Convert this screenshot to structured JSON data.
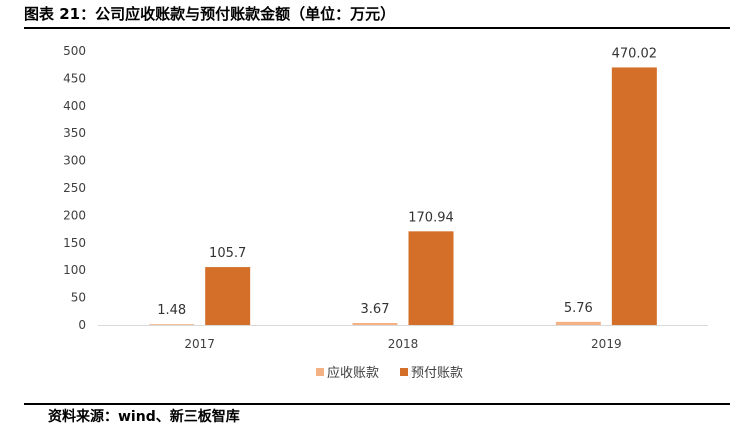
{
  "header": {
    "title": "图表 21：公司应收账款与预付账款金额（单位：万元）"
  },
  "footer": {
    "source": "资料来源：wind、新三板智库"
  },
  "chart_data": {
    "type": "bar",
    "categories": [
      "2017",
      "2018",
      "2019"
    ],
    "series": [
      {
        "name": "应收账款",
        "values": [
          1.48,
          3.67,
          5.76
        ],
        "color": "#F4B183"
      },
      {
        "name": "预付账款",
        "values": [
          105.7,
          170.94,
          470.02
        ],
        "color": "#D46F2A"
      }
    ],
    "data_labels": [
      [
        "1.48",
        "3.67",
        "5.76"
      ],
      [
        "105.7",
        "170.94",
        "470.02"
      ]
    ],
    "ylim": [
      0,
      500
    ],
    "yticks": [
      "0",
      "50",
      "100",
      "150",
      "200",
      "250",
      "300",
      "350",
      "400",
      "450",
      "500"
    ],
    "grid": false,
    "legend_position": "bottom"
  }
}
